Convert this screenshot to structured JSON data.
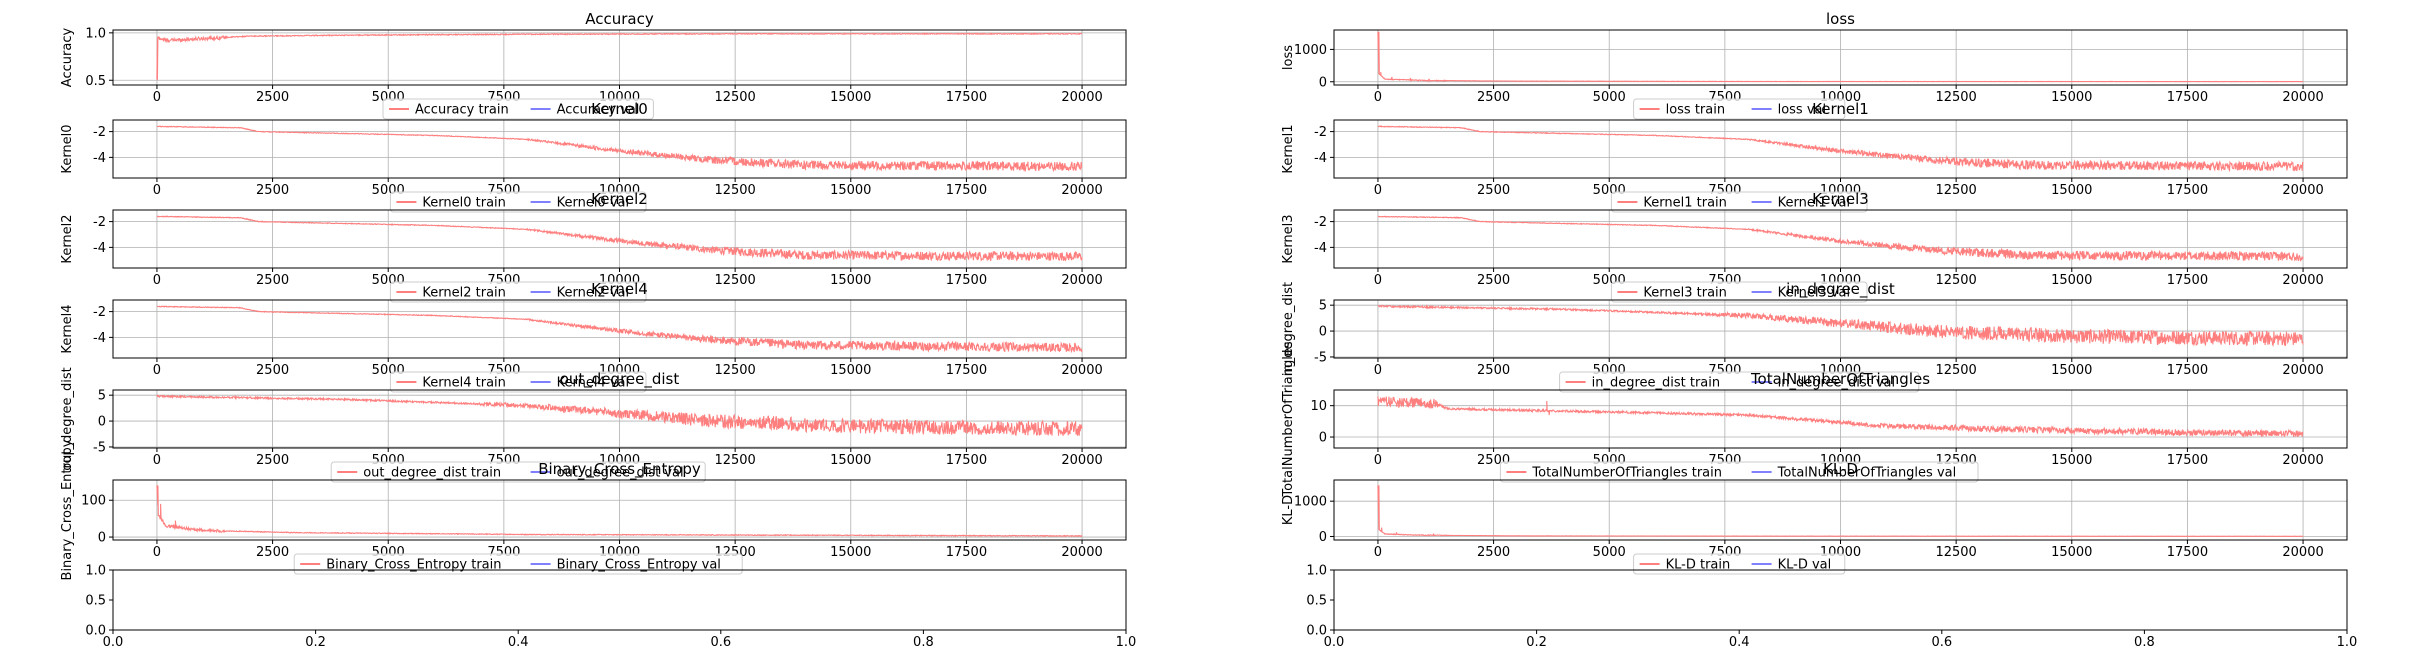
{
  "chart_data": [
    {
      "type": "line",
      "title": "Accuracy",
      "ylabel": "Accuracy",
      "ylim": [
        0.45,
        1.03
      ],
      "xlim": [
        -950,
        20950
      ],
      "xticks": [
        "0",
        "2500",
        "5000",
        "7500",
        "10000",
        "12500",
        "15000",
        "17500",
        "20000"
      ],
      "yticks": [
        "0.5",
        "1.0"
      ],
      "grid": true,
      "legend": [
        "Accuracy train",
        "Accuracy val"
      ],
      "legend_position": "bottom-center",
      "train_shape": [
        [
          0,
          0.5
        ],
        [
          5,
          0.95
        ],
        [
          200,
          0.92
        ],
        [
          1000,
          0.94
        ],
        [
          2000,
          0.965
        ],
        [
          4000,
          0.975
        ],
        [
          8000,
          0.985
        ],
        [
          12000,
          0.99
        ],
        [
          20000,
          0.99
        ]
      ],
      "noise": 0.012,
      "spikes": [
        [
          10,
          0.5
        ]
      ]
    },
    {
      "type": "line",
      "title": "loss",
      "ylabel": "loss",
      "ylim": [
        -100,
        1600
      ],
      "xlim": [
        -950,
        20950
      ],
      "xticks": [
        "0",
        "2500",
        "5000",
        "7500",
        "10000",
        "12500",
        "15000",
        "17500",
        "20000"
      ],
      "yticks": [
        "0",
        "1000"
      ],
      "grid": true,
      "legend": [
        "loss train",
        "loss val"
      ],
      "legend_position": "bottom-center",
      "train_shape": [
        [
          0,
          1550
        ],
        [
          20,
          250
        ],
        [
          150,
          80
        ],
        [
          1000,
          40
        ],
        [
          3000,
          20
        ],
        [
          8000,
          10
        ],
        [
          20000,
          5
        ]
      ],
      "noise": 8,
      "spikes": [
        [
          20,
          1550
        ],
        [
          60,
          300
        ],
        [
          300,
          150
        ],
        [
          700,
          120
        ],
        [
          1100,
          90
        ]
      ]
    },
    {
      "type": "line",
      "title": "Kernel0",
      "ylabel": "Kernel0",
      "ylim": [
        -5.6,
        -1.1
      ],
      "xlim": [
        -950,
        20950
      ],
      "xticks": [
        "0",
        "2500",
        "5000",
        "7500",
        "10000",
        "12500",
        "15000",
        "17500",
        "20000"
      ],
      "yticks": [
        "-2",
        "-4"
      ],
      "grid": true,
      "legend": [
        "Kernel0 train",
        "Kernel0 val"
      ],
      "legend_position": "bottom-center",
      "train_shape": [
        [
          0,
          -1.6
        ],
        [
          1800,
          -1.7
        ],
        [
          2200,
          -2.0
        ],
        [
          6000,
          -2.3
        ],
        [
          8000,
          -2.6
        ],
        [
          10000,
          -3.5
        ],
        [
          12000,
          -4.2
        ],
        [
          14000,
          -4.6
        ],
        [
          20000,
          -4.7
        ]
      ],
      "noise": 0.35,
      "spikes": []
    },
    {
      "type": "line",
      "title": "Kernel1",
      "ylabel": "Kernel1",
      "ylim": [
        -5.6,
        -1.1
      ],
      "xlim": [
        -950,
        20950
      ],
      "xticks": [
        "0",
        "2500",
        "5000",
        "7500",
        "10000",
        "12500",
        "15000",
        "17500",
        "20000"
      ],
      "yticks": [
        "-2",
        "-4"
      ],
      "grid": true,
      "legend": [
        "Kernel1 train",
        "Kernel1 val"
      ],
      "legend_position": "bottom-center",
      "train_shape": [
        [
          0,
          -1.6
        ],
        [
          1800,
          -1.7
        ],
        [
          2200,
          -2.0
        ],
        [
          6000,
          -2.3
        ],
        [
          8000,
          -2.6
        ],
        [
          10000,
          -3.5
        ],
        [
          12000,
          -4.2
        ],
        [
          14000,
          -4.6
        ],
        [
          20000,
          -4.7
        ]
      ],
      "noise": 0.35,
      "spikes": []
    },
    {
      "type": "line",
      "title": "Kernel2",
      "ylabel": "Kernel2",
      "ylim": [
        -5.6,
        -1.1
      ],
      "xlim": [
        -950,
        20950
      ],
      "xticks": [
        "0",
        "2500",
        "5000",
        "7500",
        "10000",
        "12500",
        "15000",
        "17500",
        "20000"
      ],
      "yticks": [
        "-2",
        "-4"
      ],
      "grid": true,
      "legend": [
        "Kernel2 train",
        "Kernel2 val"
      ],
      "legend_position": "bottom-center",
      "train_shape": [
        [
          0,
          -1.6
        ],
        [
          1800,
          -1.7
        ],
        [
          2200,
          -2.0
        ],
        [
          6000,
          -2.3
        ],
        [
          8000,
          -2.6
        ],
        [
          10000,
          -3.5
        ],
        [
          12000,
          -4.2
        ],
        [
          14000,
          -4.6
        ],
        [
          20000,
          -4.7
        ]
      ],
      "noise": 0.35,
      "spikes": []
    },
    {
      "type": "line",
      "title": "Kernel3",
      "ylabel": "Kernel3",
      "ylim": [
        -5.6,
        -1.1
      ],
      "xlim": [
        -950,
        20950
      ],
      "xticks": [
        "0",
        "2500",
        "5000",
        "7500",
        "10000",
        "12500",
        "15000",
        "17500",
        "20000"
      ],
      "yticks": [
        "-2",
        "-4"
      ],
      "grid": true,
      "legend": [
        "Kernel3 train",
        "Kernel3 val"
      ],
      "legend_position": "bottom-center",
      "train_shape": [
        [
          0,
          -1.6
        ],
        [
          1800,
          -1.7
        ],
        [
          2200,
          -2.0
        ],
        [
          6000,
          -2.3
        ],
        [
          8000,
          -2.6
        ],
        [
          10000,
          -3.5
        ],
        [
          12000,
          -4.2
        ],
        [
          14000,
          -4.6
        ],
        [
          20000,
          -4.7
        ]
      ],
      "noise": 0.35,
      "spikes": []
    },
    {
      "type": "line",
      "title": "Kernel4",
      "ylabel": "Kernel4",
      "ylim": [
        -5.6,
        -1.1
      ],
      "xlim": [
        -950,
        20950
      ],
      "xticks": [
        "0",
        "2500",
        "5000",
        "7500",
        "10000",
        "12500",
        "15000",
        "17500",
        "20000"
      ],
      "yticks": [
        "-2",
        "-4"
      ],
      "grid": true,
      "legend": [
        "Kernel4 train",
        "Kernel4 val"
      ],
      "legend_position": "bottom-center",
      "train_shape": [
        [
          0,
          -1.6
        ],
        [
          1800,
          -1.7
        ],
        [
          2200,
          -2.0
        ],
        [
          6000,
          -2.3
        ],
        [
          8000,
          -2.6
        ],
        [
          10000,
          -3.5
        ],
        [
          12000,
          -4.2
        ],
        [
          14000,
          -4.6
        ],
        [
          20000,
          -4.8
        ]
      ],
      "noise": 0.35,
      "spikes": []
    },
    {
      "type": "line",
      "title": "in_degree_dist",
      "ylabel": "in_degree_dist",
      "ylim": [
        -5.2,
        6.0
      ],
      "xlim": [
        -950,
        20950
      ],
      "xticks": [
        "0",
        "2500",
        "5000",
        "7500",
        "10000",
        "12500",
        "15000",
        "17500",
        "20000"
      ],
      "yticks": [
        "5",
        "0",
        "-5"
      ],
      "grid": true,
      "legend": [
        "in_degree_dist train",
        "in_degree_dist val"
      ],
      "legend_position": "bottom-center",
      "train_shape": [
        [
          0,
          4.8
        ],
        [
          4000,
          4.2
        ],
        [
          8000,
          3.0
        ],
        [
          10000,
          1.5
        ],
        [
          12000,
          0.0
        ],
        [
          15000,
          -1.0
        ],
        [
          20000,
          -1.5
        ]
      ],
      "noise": 1.4,
      "spikes": []
    },
    {
      "type": "line",
      "title": "out_degree_dist",
      "ylabel": "out_degree_dist",
      "ylim": [
        -5.2,
        6.0
      ],
      "xlim": [
        -950,
        20950
      ],
      "xticks": [
        "0",
        "2500",
        "5000",
        "7500",
        "10000",
        "12500",
        "15000",
        "17500",
        "20000"
      ],
      "yticks": [
        "5",
        "0",
        "-5"
      ],
      "grid": true,
      "legend": [
        "out_degree_dist train",
        "out_degree_dist val"
      ],
      "legend_position": "bottom-center",
      "train_shape": [
        [
          0,
          4.8
        ],
        [
          4000,
          4.2
        ],
        [
          8000,
          3.0
        ],
        [
          10000,
          1.5
        ],
        [
          12000,
          0.0
        ],
        [
          15000,
          -1.0
        ],
        [
          20000,
          -1.5
        ]
      ],
      "noise": 1.4,
      "spikes": []
    },
    {
      "type": "line",
      "title": "TotalNumberOfTriangles",
      "ylabel": "TotalNumberOfTriangles",
      "ylim": [
        -3.5,
        15.0
      ],
      "xlim": [
        -950,
        20950
      ],
      "xticks": [
        "0",
        "2500",
        "5000",
        "7500",
        "10000",
        "12500",
        "15000",
        "17500",
        "20000"
      ],
      "yticks": [
        "10",
        "0"
      ],
      "grid": true,
      "legend": [
        "TotalNumberOfTriangles train",
        "TotalNumberOfTriangles val"
      ],
      "legend_position": "bottom-center",
      "train_shape": [
        [
          0,
          11.5
        ],
        [
          1300,
          10.5
        ],
        [
          1500,
          9.0
        ],
        [
          5000,
          8.0
        ],
        [
          8000,
          7.0
        ],
        [
          11000,
          3.5
        ],
        [
          15000,
          2.0
        ],
        [
          20000,
          1.0
        ]
      ],
      "noise": 1.0,
      "spikes": [
        [
          3650,
          11.5
        ],
        [
          3700,
          7
        ]
      ]
    },
    {
      "type": "line",
      "title": "Binary_Cross_Entropy",
      "ylabel": "Binary_Cross_Entropy",
      "ylim": [
        -8,
        155
      ],
      "xlim": [
        -950,
        20950
      ],
      "xticks": [
        "0",
        "2500",
        "5000",
        "7500",
        "10000",
        "12500",
        "15000",
        "17500",
        "20000"
      ],
      "yticks": [
        "0",
        "100"
      ],
      "grid": true,
      "legend": [
        "Binary_Cross_Entropy train",
        "Binary_Cross_Entropy val"
      ],
      "legend_position": "bottom-center",
      "train_shape": [
        [
          0,
          140
        ],
        [
          30,
          60
        ],
        [
          200,
          30
        ],
        [
          1000,
          18
        ],
        [
          3000,
          12
        ],
        [
          8000,
          7
        ],
        [
          20000,
          3
        ]
      ],
      "noise": 2.5,
      "spikes": [
        [
          20,
          140
        ],
        [
          80,
          90
        ],
        [
          400,
          45
        ]
      ]
    },
    {
      "type": "line",
      "title": "KL-D",
      "ylabel": "KL-D",
      "ylim": [
        -100,
        1600
      ],
      "xlim": [
        -950,
        20950
      ],
      "xticks": [
        "0",
        "2500",
        "5000",
        "7500",
        "10000",
        "12500",
        "15000",
        "17500",
        "20000"
      ],
      "yticks": [
        "0",
        "1000"
      ],
      "grid": true,
      "legend": [
        "KL-D train",
        "KL-D val"
      ],
      "legend_position": "bottom-center",
      "train_shape": [
        [
          0,
          1450
        ],
        [
          20,
          200
        ],
        [
          150,
          70
        ],
        [
          1000,
          35
        ],
        [
          3000,
          18
        ],
        [
          8000,
          9
        ],
        [
          20000,
          5
        ]
      ],
      "noise": 7,
      "spikes": [
        [
          20,
          1450
        ],
        [
          80,
          250
        ],
        [
          400,
          120
        ],
        [
          1200,
          80
        ]
      ]
    },
    {
      "type": "empty",
      "title": "",
      "xlim": [
        0,
        1
      ],
      "ylim": [
        0,
        1
      ],
      "xticks": [
        "0.0",
        "0.2",
        "0.4",
        "0.6",
        "0.8",
        "1.0"
      ],
      "yticks": [
        "0.0",
        "0.5",
        "1.0"
      ],
      "grid": false
    },
    {
      "type": "empty",
      "title": "",
      "xlim": [
        0,
        1
      ],
      "ylim": [
        0,
        1
      ],
      "xticks": [
        "0.0",
        "0.2",
        "0.4",
        "0.6",
        "0.8",
        "1.0"
      ],
      "yticks": [
        "0.0",
        "0.5",
        "1.0"
      ],
      "grid": false
    }
  ],
  "colors": {
    "train": "#ff7f7f",
    "val": "#8080ff",
    "grid": "#b0b0b0",
    "axis": "#000000"
  }
}
